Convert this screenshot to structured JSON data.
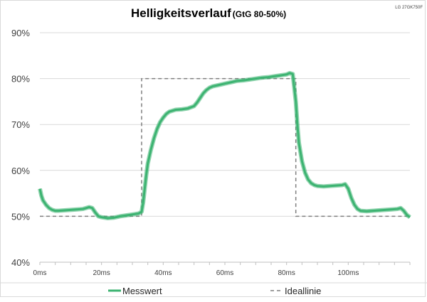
{
  "chart_data": {
    "type": "line",
    "title": "Helligkeitsverlauf",
    "subtitle": "(GtG 80-50%)",
    "device_label": "LG 27GK750F",
    "x_unit": "ms",
    "xlim": [
      0,
      120
    ],
    "ylim": [
      40,
      90
    ],
    "x_ticks": [
      {
        "value": 0,
        "label": "0ms"
      },
      {
        "value": 20,
        "label": "20ms"
      },
      {
        "value": 40,
        "label": "40ms"
      },
      {
        "value": 60,
        "label": "60ms"
      },
      {
        "value": 80,
        "label": "80ms"
      },
      {
        "value": 100,
        "label": "100ms"
      }
    ],
    "y_ticks": [
      {
        "value": 40,
        "label": "40%"
      },
      {
        "value": 50,
        "label": "50%"
      },
      {
        "value": 60,
        "label": "60%"
      },
      {
        "value": 70,
        "label": "70%"
      },
      {
        "value": 80,
        "label": "80%"
      },
      {
        "value": 90,
        "label": "90%"
      }
    ],
    "grid": "horizontal",
    "legend_position": "bottom",
    "series": [
      {
        "name": "Messwert",
        "style": "solid",
        "color": "#3cb371",
        "x": [
          0,
          0.5,
          1,
          2,
          3,
          4,
          5,
          6,
          8,
          10,
          12,
          14,
          15,
          16,
          17,
          18,
          19,
          20,
          22,
          24,
          26,
          28,
          30,
          32,
          33,
          33.5,
          34,
          34.5,
          35,
          36,
          37,
          38,
          39,
          40,
          41,
          42,
          44,
          46,
          48,
          50,
          51,
          52,
          53,
          54,
          55,
          56,
          58,
          60,
          62,
          64,
          66,
          68,
          70,
          72,
          74,
          76,
          78,
          80,
          81,
          82,
          83,
          83.5,
          84,
          85,
          86,
          87,
          88,
          89,
          90,
          92,
          94,
          96,
          98,
          99,
          100,
          101,
          102,
          103,
          104,
          106,
          108,
          110,
          112,
          114,
          116,
          117,
          118,
          119,
          120
        ],
        "y": [
          56,
          54.5,
          53.5,
          52.5,
          51.8,
          51.4,
          51.2,
          51.2,
          51.3,
          51.4,
          51.5,
          51.6,
          51.8,
          52.0,
          51.8,
          50.8,
          50.0,
          49.8,
          49.6,
          49.7,
          50.0,
          50.2,
          50.4,
          50.6,
          51.0,
          53.0,
          56.0,
          59.0,
          61.5,
          64.5,
          67.0,
          69.0,
          70.5,
          71.5,
          72.3,
          72.8,
          73.2,
          73.3,
          73.5,
          74.0,
          74.8,
          75.8,
          76.8,
          77.5,
          78.0,
          78.3,
          78.6,
          78.9,
          79.2,
          79.5,
          79.6,
          79.8,
          80.0,
          80.2,
          80.3,
          80.5,
          80.7,
          80.9,
          81.2,
          81.0,
          75.0,
          70.0,
          66.0,
          62.0,
          59.5,
          58.0,
          57.2,
          56.8,
          56.6,
          56.5,
          56.6,
          56.7,
          56.8,
          57.0,
          56.0,
          54.0,
          52.5,
          51.6,
          51.2,
          51.1,
          51.2,
          51.3,
          51.4,
          51.5,
          51.6,
          51.8,
          51.2,
          50.3,
          49.8
        ]
      },
      {
        "name": "Ideallinie",
        "style": "dashed",
        "color": "#7f7f7f",
        "x": [
          0,
          33,
          33,
          83,
          83,
          120
        ],
        "y": [
          50,
          50,
          80,
          80,
          50,
          50
        ]
      }
    ]
  }
}
